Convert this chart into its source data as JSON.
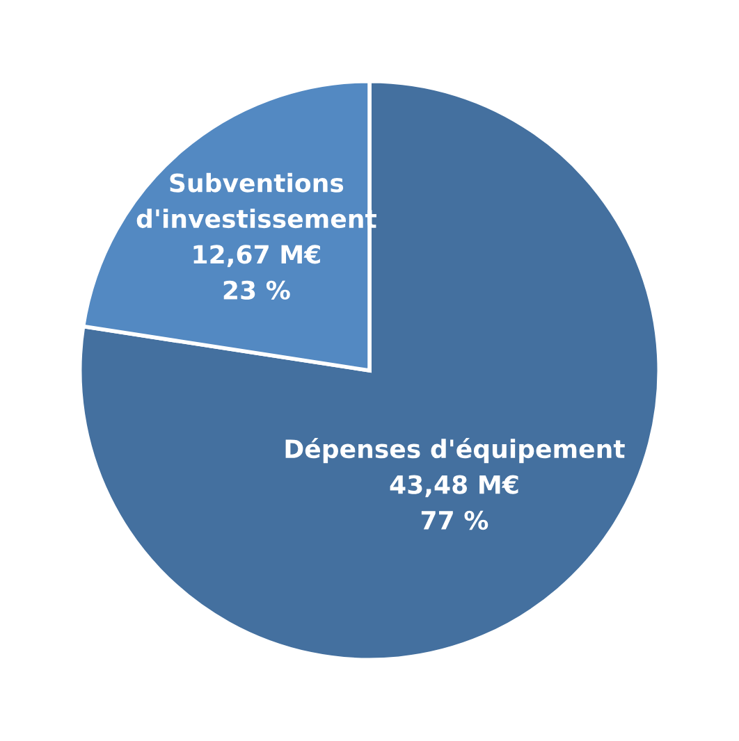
{
  "chart_data": {
    "type": "pie",
    "categories": [
      "Dépenses d'équipement",
      "Subventions\nd'investissement"
    ],
    "values": [
      43.48,
      12.67
    ],
    "value_labels": [
      "43,48 M€\n77 %",
      "12,67 M€\n23 %"
    ],
    "colors": [
      "#44709f",
      "#5389c2"
    ],
    "legend": false
  }
}
